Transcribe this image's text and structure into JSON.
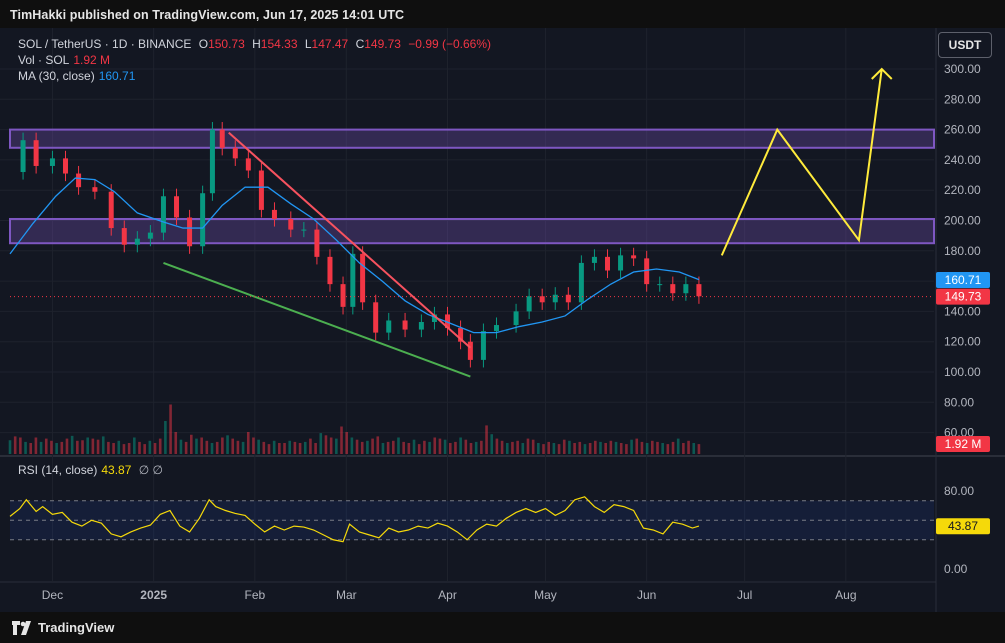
{
  "header": {
    "published": "TimHakki published on TradingView.com, Jun 17, 2025 14:01 UTC"
  },
  "legend": {
    "symbol": "SOL / TetherUS · 1D · BINANCE",
    "o_label": "O",
    "o_value": "150.73",
    "h_label": "H",
    "h_value": "154.33",
    "l_label": "L",
    "l_value": "147.47",
    "c_label": "C",
    "c_value": "149.73",
    "change": "−0.99 (−0.66%)",
    "vol_label": "Vol · SOL",
    "vol_value": "1.92 M",
    "ma_label": "MA (30, close)",
    "ma_value": "160.71",
    "rsi_label": "RSI (14, close)",
    "rsi_value": "43.87",
    "rsi_extra": "∅ ∅"
  },
  "currency_button": "USDT",
  "branding": {
    "name": "TradingView",
    "icon": "tradingview-logo-icon"
  },
  "colors": {
    "up": "#089981",
    "down": "#f23645",
    "ma": "#2196f3",
    "rsi": "#f5d90a",
    "zone": "#7e57c2",
    "projection": "#ffeb3b",
    "resistance_trendline": "#f7525f",
    "support_trendline": "#4caf50"
  },
  "chart_data": [
    {
      "type": "candlestick",
      "title": "SOL / TetherUS · 1D · BINANCE",
      "price_axis": {
        "ticks": [
          "300.00",
          "280.00",
          "260.00",
          "240.00",
          "220.00",
          "200.00",
          "180.00",
          "160.00",
          "140.00",
          "120.00",
          "100.00",
          "80.00",
          "60.00"
        ],
        "ylim": [
          50,
          310
        ]
      },
      "time_axis": {
        "ticks": [
          "Dec",
          "2025",
          "Feb",
          "Mar",
          "Apr",
          "May",
          "Jun",
          "Jul",
          "Aug"
        ]
      },
      "last_price": "149.73",
      "ma_last": "160.71",
      "volume_last": "1.92 M",
      "zones": [
        {
          "low": 248,
          "high": 260
        },
        {
          "low": 185,
          "high": 201
        }
      ],
      "trendlines": [
        {
          "kind": "resistance",
          "points": [
            [
              "2025-01-24",
              258
            ],
            [
              "2025-04-08",
              116
            ]
          ]
        },
        {
          "kind": "support",
          "points": [
            [
              "2025-01-04",
              172
            ],
            [
              "2025-04-08",
              97
            ]
          ]
        }
      ],
      "projection": [
        [
          "2025-06-24",
          177
        ],
        [
          "2025-07-11",
          260
        ],
        [
          "2025-08-05",
          187
        ],
        [
          "2025-08-12",
          300
        ]
      ],
      "ma_series": [
        [
          "2024-11-18",
          178
        ],
        [
          "2024-11-25",
          198
        ],
        [
          "2024-12-02",
          216
        ],
        [
          "2024-12-08",
          228
        ],
        [
          "2024-12-14",
          227
        ],
        [
          "2024-12-20",
          219
        ],
        [
          "2024-12-27",
          205
        ],
        [
          "2025-01-04",
          199
        ],
        [
          "2025-01-10",
          195
        ],
        [
          "2025-01-16",
          195
        ],
        [
          "2025-01-22",
          210
        ],
        [
          "2025-01-29",
          222
        ],
        [
          "2025-02-05",
          222
        ],
        [
          "2025-02-12",
          211
        ],
        [
          "2025-02-19",
          201
        ],
        [
          "2025-02-26",
          187
        ],
        [
          "2025-03-05",
          172
        ],
        [
          "2025-03-12",
          160
        ],
        [
          "2025-03-19",
          147
        ],
        [
          "2025-03-26",
          138
        ],
        [
          "2025-04-02",
          132
        ],
        [
          "2025-04-09",
          126
        ],
        [
          "2025-04-16",
          126
        ],
        [
          "2025-04-23",
          130
        ],
        [
          "2025-04-30",
          133
        ],
        [
          "2025-05-07",
          137
        ],
        [
          "2025-05-14",
          148
        ],
        [
          "2025-05-21",
          158
        ],
        [
          "2025-05-28",
          166
        ],
        [
          "2025-06-04",
          168
        ],
        [
          "2025-06-11",
          166
        ],
        [
          "2025-06-17",
          161
        ]
      ],
      "close_series": [
        [
          "2024-11-18",
          232
        ],
        [
          "2024-11-22",
          253
        ],
        [
          "2024-11-26",
          236
        ],
        [
          "2024-12-01",
          241
        ],
        [
          "2024-12-05",
          231
        ],
        [
          "2024-12-09",
          222
        ],
        [
          "2024-12-14",
          219
        ],
        [
          "2024-12-19",
          195
        ],
        [
          "2024-12-23",
          184
        ],
        [
          "2024-12-27",
          188
        ],
        [
          "2024-12-31",
          192
        ],
        [
          "2025-01-04",
          216
        ],
        [
          "2025-01-08",
          202
        ],
        [
          "2025-01-12",
          183
        ],
        [
          "2025-01-16",
          218
        ],
        [
          "2025-01-19",
          260
        ],
        [
          "2025-01-22",
          248
        ],
        [
          "2025-01-26",
          241
        ],
        [
          "2025-01-30",
          233
        ],
        [
          "2025-02-03",
          207
        ],
        [
          "2025-02-07",
          201
        ],
        [
          "2025-02-12",
          194
        ],
        [
          "2025-02-16",
          194
        ],
        [
          "2025-02-20",
          176
        ],
        [
          "2025-02-24",
          158
        ],
        [
          "2025-02-28",
          143
        ],
        [
          "2025-03-03",
          178
        ],
        [
          "2025-03-06",
          146
        ],
        [
          "2025-03-10",
          126
        ],
        [
          "2025-03-14",
          134
        ],
        [
          "2025-03-19",
          128
        ],
        [
          "2025-03-24",
          133
        ],
        [
          "2025-03-28",
          138
        ],
        [
          "2025-04-01",
          129
        ],
        [
          "2025-04-05",
          120
        ],
        [
          "2025-04-08",
          108
        ],
        [
          "2025-04-12",
          127
        ],
        [
          "2025-04-16",
          131
        ],
        [
          "2025-04-22",
          140
        ],
        [
          "2025-04-26",
          150
        ],
        [
          "2025-04-30",
          146
        ],
        [
          "2025-05-04",
          151
        ],
        [
          "2025-05-08",
          146
        ],
        [
          "2025-05-12",
          172
        ],
        [
          "2025-05-16",
          176
        ],
        [
          "2025-05-20",
          167
        ],
        [
          "2025-05-24",
          177
        ],
        [
          "2025-05-28",
          175
        ],
        [
          "2025-06-01",
          158
        ],
        [
          "2025-06-05",
          158
        ],
        [
          "2025-06-09",
          152
        ],
        [
          "2025-06-13",
          158
        ],
        [
          "2025-06-17",
          150
        ]
      ],
      "volume_series": [
        25,
        32,
        30,
        22,
        20,
        30,
        22,
        28,
        24,
        20,
        22,
        28,
        33,
        24,
        25,
        30,
        28,
        26,
        32,
        22,
        20,
        24,
        18,
        20,
        30,
        22,
        18,
        24,
        20,
        28,
        60,
        90,
        40,
        26,
        22,
        35,
        28,
        30,
        24,
        20,
        22,
        30,
        34,
        28,
        24,
        22,
        40,
        30,
        26,
        22,
        18,
        24,
        20,
        20,
        24,
        22,
        20,
        22,
        28,
        20,
        38,
        34,
        30,
        28,
        50,
        40,
        30,
        26,
        22,
        24,
        28,
        32,
        20,
        22,
        24,
        30,
        22,
        20,
        26,
        18,
        24,
        22,
        30,
        28,
        26,
        20,
        22,
        30,
        26,
        20,
        22,
        24,
        52,
        36,
        28,
        24,
        20,
        22,
        24,
        20,
        28,
        26,
        20,
        18,
        22,
        20,
        18,
        26,
        24,
        20,
        22,
        18,
        20,
        24,
        22,
        20,
        24,
        22,
        20,
        18,
        26,
        28,
        22,
        20,
        24,
        22,
        20,
        18,
        22,
        28,
        20,
        24,
        20,
        18
      ]
    },
    {
      "type": "line",
      "title": "RSI (14, close)",
      "axis": {
        "ticks": [
          "80.00",
          "0.00"
        ],
        "ylim": [
          0,
          100
        ]
      },
      "bands": [
        30,
        50,
        70
      ],
      "last_value": "43.87",
      "series": [
        [
          "2024-11-18",
          54
        ],
        [
          "2024-11-21",
          62
        ],
        [
          "2024-11-23",
          71
        ],
        [
          "2024-11-26",
          59
        ],
        [
          "2024-11-28",
          64
        ],
        [
          "2024-12-01",
          56
        ],
        [
          "2024-12-04",
          58
        ],
        [
          "2024-12-07",
          48
        ],
        [
          "2024-12-10",
          44
        ],
        [
          "2024-12-13",
          50
        ],
        [
          "2024-12-16",
          47
        ],
        [
          "2024-12-19",
          36
        ],
        [
          "2024-12-22",
          33
        ],
        [
          "2024-12-25",
          38
        ],
        [
          "2024-12-28",
          42
        ],
        [
          "2024-12-31",
          45
        ],
        [
          "2025-01-03",
          56
        ],
        [
          "2025-01-06",
          60
        ],
        [
          "2025-01-09",
          44
        ],
        [
          "2025-01-12",
          38
        ],
        [
          "2025-01-15",
          52
        ],
        [
          "2025-01-18",
          71
        ],
        [
          "2025-01-20",
          64
        ],
        [
          "2025-01-23",
          60
        ],
        [
          "2025-01-26",
          57
        ],
        [
          "2025-01-29",
          55
        ],
        [
          "2025-02-01",
          46
        ],
        [
          "2025-02-04",
          38
        ],
        [
          "2025-02-07",
          44
        ],
        [
          "2025-02-10",
          40
        ],
        [
          "2025-02-13",
          44
        ],
        [
          "2025-02-16",
          43
        ],
        [
          "2025-02-19",
          40
        ],
        [
          "2025-02-22",
          35
        ],
        [
          "2025-02-25",
          30
        ],
        [
          "2025-02-28",
          28
        ],
        [
          "2025-03-02",
          46
        ],
        [
          "2025-03-05",
          38
        ],
        [
          "2025-03-08",
          35
        ],
        [
          "2025-03-11",
          32
        ],
        [
          "2025-03-14",
          42
        ],
        [
          "2025-03-17",
          38
        ],
        [
          "2025-03-20",
          40
        ],
        [
          "2025-03-23",
          44
        ],
        [
          "2025-03-26",
          42
        ],
        [
          "2025-03-29",
          47
        ],
        [
          "2025-04-01",
          44
        ],
        [
          "2025-04-04",
          38
        ],
        [
          "2025-04-07",
          30
        ],
        [
          "2025-04-10",
          40
        ],
        [
          "2025-04-13",
          46
        ],
        [
          "2025-04-16",
          44
        ],
        [
          "2025-04-19",
          52
        ],
        [
          "2025-04-22",
          58
        ],
        [
          "2025-04-25",
          62
        ],
        [
          "2025-04-28",
          58
        ],
        [
          "2025-05-01",
          62
        ],
        [
          "2025-05-04",
          55
        ],
        [
          "2025-05-07",
          60
        ],
        [
          "2025-05-10",
          71
        ],
        [
          "2025-05-13",
          74
        ],
        [
          "2025-05-16",
          64
        ],
        [
          "2025-05-19",
          58
        ],
        [
          "2025-05-22",
          66
        ],
        [
          "2025-05-25",
          64
        ],
        [
          "2025-05-28",
          60
        ],
        [
          "2025-05-31",
          42
        ],
        [
          "2025-06-03",
          40
        ],
        [
          "2025-06-06",
          36
        ],
        [
          "2025-06-09",
          48
        ],
        [
          "2025-06-12",
          46
        ],
        [
          "2025-06-15",
          42
        ],
        [
          "2025-06-17",
          44
        ]
      ]
    }
  ]
}
